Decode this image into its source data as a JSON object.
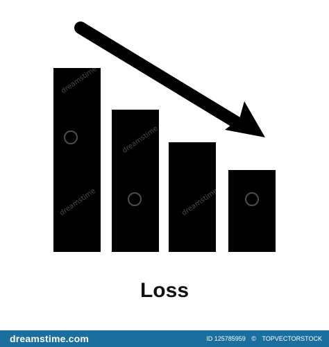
{
  "icon": {
    "name": "loss-chart-icon",
    "caption": "Loss",
    "fill_color": "#000000",
    "arrow_direction": "down-right"
  },
  "watermark": {
    "text": "dreamstime"
  },
  "footer": {
    "brand": "dreamstime.com",
    "id_text": "ID 125785959",
    "separator": "©",
    "author": "TOPVECTORSTOCK",
    "background_color": "#1b6f9f"
  }
}
